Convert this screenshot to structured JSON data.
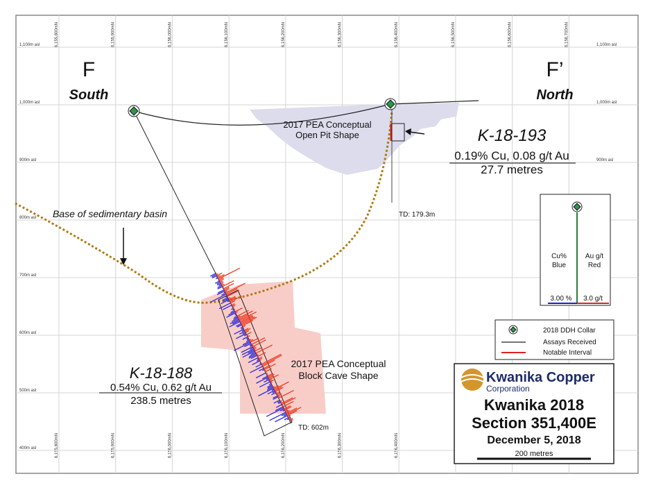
{
  "section": {
    "left_letter": "F",
    "left_direction": "South",
    "right_letter": "F’",
    "right_direction": "North"
  },
  "grid": {
    "elevations_left": [
      "1,100m asl",
      "1,000m asl",
      "900m asl",
      "800m asl",
      "700m asl",
      "600m asl",
      "500m asl",
      "400m asl"
    ],
    "elevations_right": [
      "1,100m asl",
      "1,000m asl",
      "900m asl"
    ],
    "northings_top": [
      "6,155,800mN",
      "6,155,900mN",
      "6,156,000mN",
      "6,156,100mN",
      "6,156,200mN",
      "6,156,300mN",
      "6,156,400mN",
      "6,156,500mN",
      "6,156,600mN",
      "6,156,700mN"
    ],
    "northings_bottom": [
      "6,155,800mN",
      "6,155,900mN",
      "6,156,000mN",
      "6,156,100mN",
      "6,156,200mN",
      "6,156,300mN",
      "6,156,400mN"
    ]
  },
  "annotations": {
    "open_pit": [
      "2017 PEA Conceptual",
      "Open Pit Shape"
    ],
    "block_cave": [
      "2017 PEA Conceptual",
      "Block Cave Shape"
    ],
    "basin": "Base of sedimentary basin"
  },
  "drill_holes": [
    {
      "id": "K-18-188",
      "grade": "0.54% Cu, 0.62 g/t Au",
      "length": "238.5 metres",
      "total_depth": "TD: 602m"
    },
    {
      "id": "K-18-193",
      "grade": "0.19% Cu, 0.08 g/t Au",
      "length": "27.7 metres",
      "total_depth": "TD: 179.3m"
    }
  ],
  "scale_legend": {
    "cu": [
      "Cu%",
      "Blue"
    ],
    "au": [
      "Au g/t",
      "Red"
    ],
    "cu_max": "3.00 %",
    "au_max": "3.0 g/t"
  },
  "symbol_legend": [
    "2018 DDH Collar",
    "Assays Received",
    "Notable Interval"
  ],
  "title_block": {
    "company": "Kwanika Copper",
    "company_sub": "Corporation",
    "title": "Kwanika 2018",
    "section": "Section 351,400E",
    "date": "December 5, 2018",
    "scale": "200 metres"
  }
}
